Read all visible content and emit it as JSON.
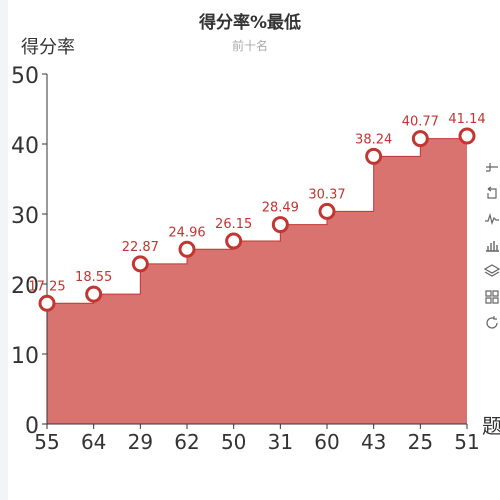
{
  "chart_data": {
    "type": "area",
    "step": true,
    "title": "得分率%最低",
    "subtitle": "前十名",
    "ylabel": "得分率",
    "xlabel": "题",
    "ylim": [
      0,
      50
    ],
    "yticks": [
      0,
      10,
      20,
      30,
      40,
      50
    ],
    "categories": [
      "55",
      "64",
      "29",
      "62",
      "50",
      "31",
      "60",
      "43",
      "25",
      "51"
    ],
    "values": [
      17.25,
      18.55,
      22.87,
      24.96,
      26.15,
      28.49,
      30.37,
      38.24,
      40.77,
      41.14
    ],
    "data_labels": [
      "17.25",
      "18.55",
      "22.87",
      "24.96",
      "26.15",
      "28.49",
      "30.37",
      "38.24",
      "40.77",
      "41.14"
    ],
    "grid": false,
    "colors": {
      "area": "#d87370",
      "line": "#c23531",
      "marker_fill": "#ffffff",
      "label": "#c23531",
      "axis": "#333333"
    }
  },
  "toolbox": {
    "items": [
      {
        "name": "mark-tool",
        "icon": "mark-icon"
      },
      {
        "name": "restore-tool",
        "icon": "restore-icon"
      },
      {
        "name": "line-chart-tool",
        "icon": "line-chart-icon"
      },
      {
        "name": "bar-chart-tool",
        "icon": "bar-chart-icon"
      },
      {
        "name": "stack-tool",
        "icon": "stack-icon"
      },
      {
        "name": "tiled-tool",
        "icon": "tiled-icon"
      },
      {
        "name": "refresh-tool",
        "icon": "refresh-icon"
      }
    ]
  }
}
